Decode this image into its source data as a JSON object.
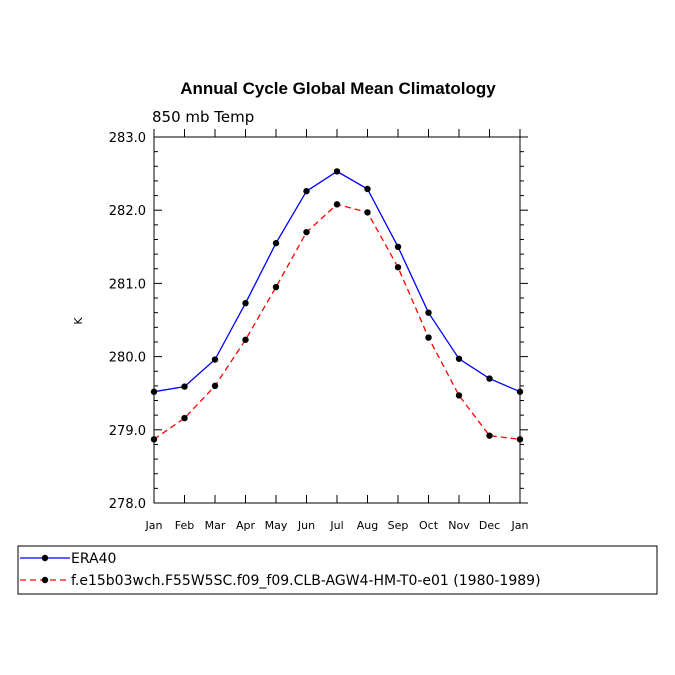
{
  "chart_data": {
    "type": "line",
    "title": "Annual Cycle Global Mean Climatology",
    "subtitle": "850 mb Temp",
    "xlabel": "",
    "ylabel": "K",
    "categories": [
      "Jan",
      "Feb",
      "Mar",
      "Apr",
      "May",
      "Jun",
      "Jul",
      "Aug",
      "Sep",
      "Oct",
      "Nov",
      "Dec",
      "Jan"
    ],
    "ylim": [
      278.0,
      283.0
    ],
    "yticks": [
      "278.0",
      "279.0",
      "280.0",
      "281.0",
      "282.0",
      "283.0"
    ],
    "series": [
      {
        "name": "ERA40",
        "color": "#0000ff",
        "dash": "solid",
        "values": [
          279.52,
          279.59,
          279.96,
          280.73,
          281.55,
          282.26,
          282.53,
          282.29,
          281.5,
          280.6,
          279.97,
          279.7,
          279.52
        ]
      },
      {
        "name": "f.e15b03wch.F55W5SC.f09_f09.CLB-AGW4-HM-T0-e01 (1980-1989)",
        "color": "#ff0000",
        "dash": "dashed",
        "values": [
          278.87,
          279.16,
          279.6,
          280.23,
          280.95,
          281.7,
          282.08,
          281.97,
          281.22,
          280.26,
          279.47,
          278.92,
          278.87
        ]
      }
    ]
  }
}
